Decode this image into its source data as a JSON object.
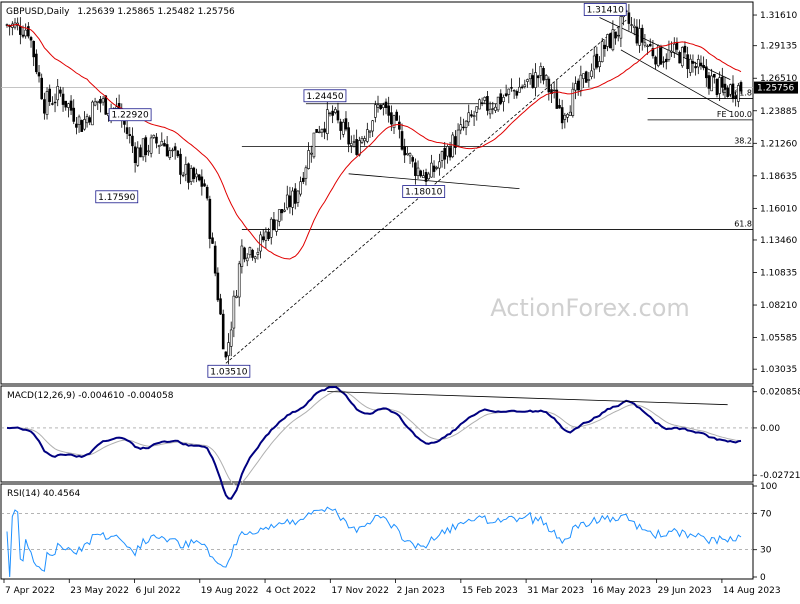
{
  "header": {
    "symbol": "GBPUSD,Daily",
    "ohlc": "1.25639 1.25865 1.25482 1.25756"
  },
  "watermark": "ActionForex.com",
  "colors": {
    "candle": "#000000",
    "ma": "#e00000",
    "label_border": "#1a1a8c",
    "macd": "#000080",
    "signal": "#b0b0b0",
    "rsi": "#1e90ff",
    "price_tag_bg": "#000000",
    "price_tag_fg": "#ffffff"
  },
  "price_panel": {
    "ylim": [
      1.02,
      1.325
    ],
    "y_ticks": [
      "1.31610",
      "1.29135",
      "1.26510",
      "1.23885",
      "1.21260",
      "1.18635",
      "1.16010",
      "1.13460",
      "1.10835",
      "1.08210",
      "1.05585",
      "1.03035"
    ],
    "current_price": "1.25756",
    "ma_label_note": "",
    "swing_labels": [
      {
        "text": "1.31410",
        "bar": 223,
        "price": 1.3141,
        "pos": "above"
      },
      {
        "text": "1.24450",
        "bar": 118,
        "price": 1.2445,
        "pos": "above"
      },
      {
        "text": "1.22920",
        "bar": 45,
        "price": 1.2292,
        "pos": "above"
      },
      {
        "text": "1.17590",
        "bar": 40,
        "price": 1.1759,
        "pos": "below"
      },
      {
        "text": "1.18010",
        "bar": 155,
        "price": 1.1801,
        "pos": "below"
      },
      {
        "text": "1.03510",
        "bar": 82,
        "price": 1.0351,
        "pos": "below"
      }
    ],
    "fib_lines": [
      {
        "label": "FE 61.8",
        "price": 1.2487
      },
      {
        "label": "FE 100.0",
        "price": 1.2315
      },
      {
        "label": "38.2",
        "price": 1.21
      },
      {
        "label": "61.8",
        "price": 1.143
      }
    ]
  },
  "macd_panel": {
    "title": "MACD(12,26,9) -0.004610 -0.004058",
    "ylim": [
      -0.03,
      0.023
    ],
    "y_ticks": [
      "0.020858",
      "0.00",
      "-0.027213"
    ]
  },
  "rsi_panel": {
    "title": "RSI(14) 40.4564",
    "ylim": [
      0,
      100
    ],
    "y_ticks": [
      "100",
      "70",
      "30",
      "0"
    ]
  },
  "x_axis": {
    "labels": [
      "7 Apr 2022",
      "23 May 2022",
      "6 Jul 2022",
      "19 Aug 2022",
      "4 Oct 2022",
      "17 Nov 2022",
      "2 Jan 2023",
      "15 Feb 2023",
      "31 Mar 2023",
      "16 May 2023",
      "29 Jun 2023",
      "14 Aug 2023"
    ],
    "label_bars": [
      0,
      32,
      63,
      94,
      126,
      157,
      189,
      220,
      252,
      283,
      314,
      345
    ]
  },
  "chart_data": {
    "type": "line",
    "title": "GBPUSD,Daily",
    "xlabel": "",
    "ylabel": "",
    "x": [
      "7 Apr 2022",
      "23 May 2022",
      "6 Jul 2022",
      "19 Aug 2022",
      "4 Oct 2022",
      "17 Nov 2022",
      "2 Jan 2023",
      "15 Feb 2023",
      "31 Mar 2023",
      "16 May 2023",
      "29 Jun 2023",
      "14 Aug 2023"
    ],
    "series": [
      {
        "values": [
          1.308,
          1.253,
          1.197,
          1.188,
          1.125,
          1.165,
          1.207,
          1.203,
          1.235,
          1.247,
          1.271,
          1.272
        ]
      }
    ],
    "key_levels": [
      1.3141,
      1.2445,
      1.2292,
      1.1801,
      1.1759,
      1.0351
    ],
    "grid": false
  }
}
